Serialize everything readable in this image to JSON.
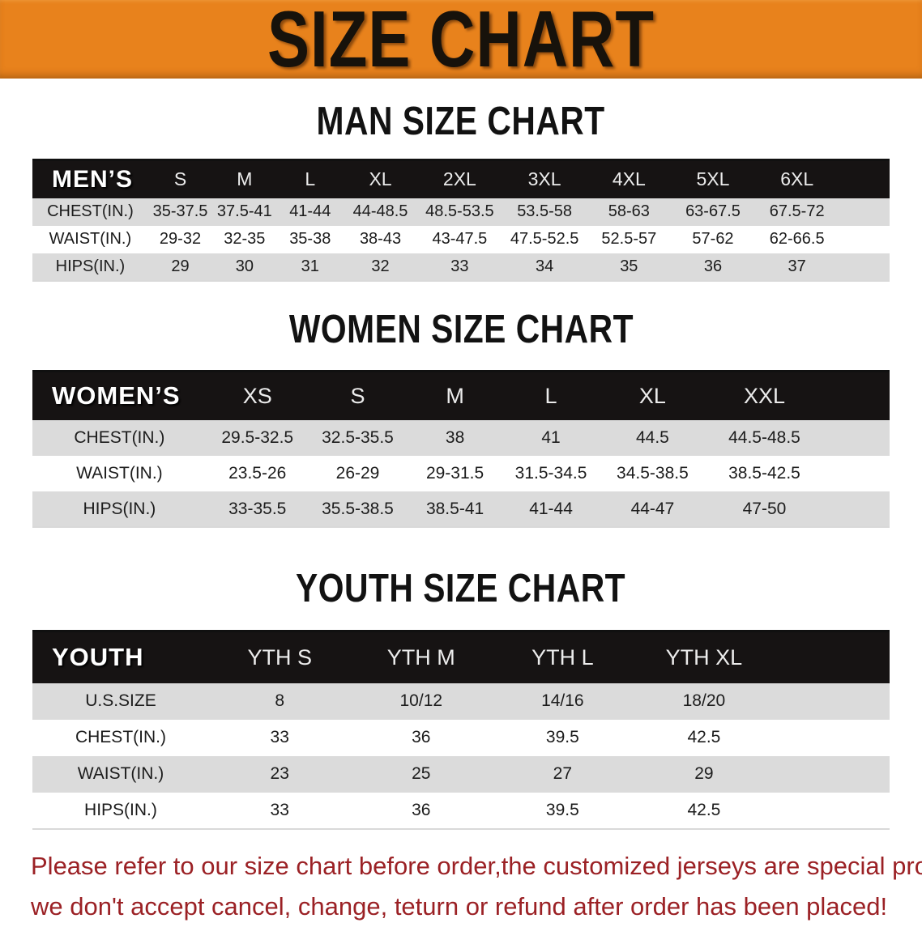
{
  "banner": {
    "title": "SIZE CHART",
    "bg_color": "#E8821C",
    "text_color": "#17120B"
  },
  "sections": [
    {
      "heading": "MAN SIZE CHART",
      "table": {
        "header_label": "MEN’S",
        "columns": [
          "S",
          "M",
          "L",
          "XL",
          "2XL",
          "3XL",
          "4XL",
          "5XL",
          "6XL"
        ],
        "rows": [
          {
            "label": "CHEST(IN.)",
            "values": [
              "35-37.5",
              "37.5-41",
              "41-44",
              "44-48.5",
              "48.5-53.5",
              "53.5-58",
              "58-63",
              "63-67.5",
              "67.5-72"
            ]
          },
          {
            "label": "WAIST(IN.)",
            "values": [
              "29-32",
              "32-35",
              "35-38",
              "38-43",
              "43-47.5",
              "47.5-52.5",
              "52.5-57",
              "57-62",
              "62-66.5"
            ]
          },
          {
            "label": "HIPS(IN.)",
            "values": [
              "29",
              "30",
              "31",
              "32",
              "33",
              "34",
              "35",
              "36",
              "37"
            ]
          }
        ]
      }
    },
    {
      "heading": "WOMEN SIZE CHART",
      "table": {
        "header_label": "WOMEN’S",
        "columns": [
          "XS",
          "S",
          "M",
          "L",
          "XL",
          "XXL"
        ],
        "rows": [
          {
            "label": "CHEST(IN.)",
            "values": [
              "29.5-32.5",
              "32.5-35.5",
              "38",
              "41",
              "44.5",
              "44.5-48.5"
            ]
          },
          {
            "label": "WAIST(IN.)",
            "values": [
              "23.5-26",
              "26-29",
              "29-31.5",
              "31.5-34.5",
              "34.5-38.5",
              "38.5-42.5"
            ]
          },
          {
            "label": "HIPS(IN.)",
            "values": [
              "33-35.5",
              "35.5-38.5",
              "38.5-41",
              "41-44",
              "44-47",
              "47-50"
            ]
          }
        ]
      }
    },
    {
      "heading": "YOUTH SIZE CHART",
      "table": {
        "header_label": "YOUTH",
        "columns": [
          "YTH S",
          "YTH M",
          "YTH L",
          "YTH XL"
        ],
        "rows": [
          {
            "label": "U.S.SIZE",
            "values": [
              "8",
              "10/12",
              "14/16",
              "18/20"
            ]
          },
          {
            "label": "CHEST(IN.)",
            "values": [
              "33",
              "36",
              "39.5",
              "42.5"
            ]
          },
          {
            "label": "WAIST(IN.)",
            "values": [
              "23",
              "25",
              "27",
              "29"
            ]
          },
          {
            "label": "HIPS(IN.)",
            "values": [
              "33",
              "36",
              "39.5",
              "42.5"
            ]
          }
        ]
      }
    }
  ],
  "disclaimer": {
    "line1": "Please refer to our size chart before order,the customized jerseys are special products,",
    "line2": "we don't accept cancel, change, teturn or refund after order has been placed!",
    "color": "#9B2125"
  },
  "colors": {
    "banner_orange": "#E8821C",
    "table_header_black": "#161313",
    "row_shade_gray": "#DBDBDB",
    "row_white": "#FFFFFF",
    "body_text": "#1C1C1C"
  }
}
